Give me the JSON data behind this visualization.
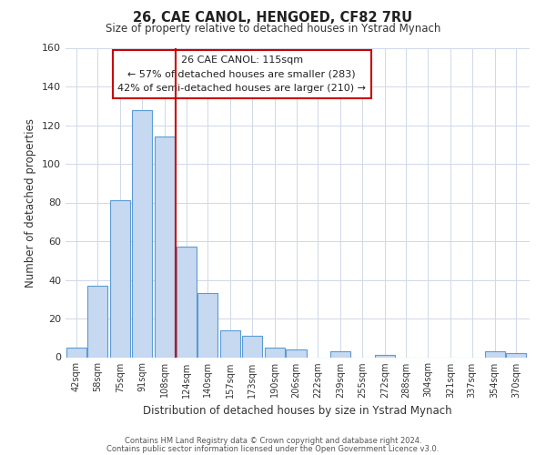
{
  "title": "26, CAE CANOL, HENGOED, CF82 7RU",
  "subtitle": "Size of property relative to detached houses in Ystrad Mynach",
  "xlabel": "Distribution of detached houses by size in Ystrad Mynach",
  "ylabel": "Number of detached properties",
  "bar_labels": [
    "42sqm",
    "58sqm",
    "75sqm",
    "91sqm",
    "108sqm",
    "124sqm",
    "140sqm",
    "157sqm",
    "173sqm",
    "190sqm",
    "206sqm",
    "222sqm",
    "239sqm",
    "255sqm",
    "272sqm",
    "288sqm",
    "304sqm",
    "321sqm",
    "337sqm",
    "354sqm",
    "370sqm"
  ],
  "bar_values": [
    5,
    37,
    81,
    128,
    114,
    57,
    33,
    14,
    11,
    5,
    4,
    0,
    3,
    0,
    1,
    0,
    0,
    0,
    0,
    3,
    2
  ],
  "bar_color": "#c6d9f0",
  "bar_edge_color": "#5b9bd5",
  "property_line_color": "#cc0000",
  "annotation_line1": "26 CAE CANOL: 115sqm",
  "annotation_line2": "← 57% of detached houses are smaller (283)",
  "annotation_line3": "42% of semi-detached houses are larger (210) →",
  "ylim": [
    0,
    160
  ],
  "bin_width": 16,
  "footer_line1": "Contains HM Land Registry data © Crown copyright and database right 2024.",
  "footer_line2": "Contains public sector information licensed under the Open Government Licence v3.0.",
  "background_color": "#ffffff",
  "grid_color": "#d0d8e8"
}
